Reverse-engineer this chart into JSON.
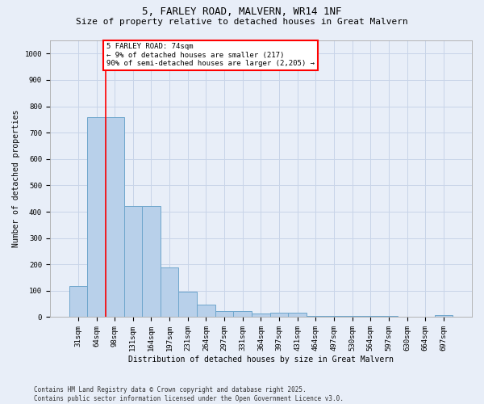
{
  "title_line1": "5, FARLEY ROAD, MALVERN, WR14 1NF",
  "title_line2": "Size of property relative to detached houses in Great Malvern",
  "xlabel": "Distribution of detached houses by size in Great Malvern",
  "ylabel": "Number of detached properties",
  "bar_color": "#b8d0ea",
  "bar_edge_color": "#6ea6cc",
  "grid_color": "#c8d4e8",
  "background_color": "#e8eef8",
  "annotation_text": "5 FARLEY ROAD: 74sqm\n← 9% of detached houses are smaller (217)\n90% of semi-detached houses are larger (2,205) →",
  "annotation_box_color": "white",
  "annotation_box_edge": "red",
  "vline_x": 1.5,
  "vline_color": "red",
  "categories": [
    "31sqm",
    "64sqm",
    "98sqm",
    "131sqm",
    "164sqm",
    "197sqm",
    "231sqm",
    "264sqm",
    "297sqm",
    "331sqm",
    "364sqm",
    "397sqm",
    "431sqm",
    "464sqm",
    "497sqm",
    "530sqm",
    "564sqm",
    "597sqm",
    "630sqm",
    "664sqm",
    "697sqm"
  ],
  "values": [
    118,
    760,
    760,
    420,
    420,
    188,
    98,
    48,
    22,
    22,
    15,
    18,
    18,
    6,
    3,
    3,
    3,
    3,
    0,
    0,
    8
  ],
  "ylim": [
    0,
    1050
  ],
  "yticks": [
    0,
    100,
    200,
    300,
    400,
    500,
    600,
    700,
    800,
    900,
    1000
  ],
  "footnote": "Contains HM Land Registry data © Crown copyright and database right 2025.\nContains public sector information licensed under the Open Government Licence v3.0.",
  "footnote_fontsize": 5.5,
  "title_fontsize1": 9,
  "title_fontsize2": 8,
  "axis_label_fontsize": 7,
  "tick_fontsize": 6.5,
  "annotation_fontsize": 6.5
}
